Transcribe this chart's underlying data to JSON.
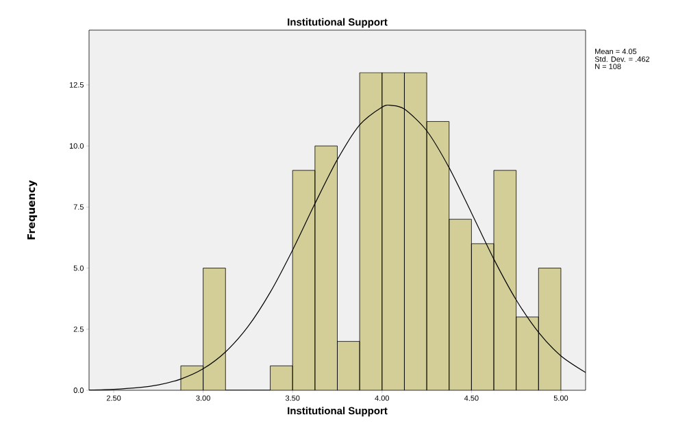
{
  "chart_data": {
    "type": "histogram",
    "title": "Institutional Support",
    "xlabel": "Institutional Support",
    "ylabel": "Frequency",
    "bins": [
      2.875,
      3.0,
      3.125,
      3.25,
      3.375,
      3.5,
      3.625,
      3.75,
      3.875,
      4.0,
      4.125,
      4.25,
      4.375,
      4.5,
      4.625,
      4.75,
      4.875,
      5.0
    ],
    "values": [
      1,
      5,
      0,
      0,
      1,
      9,
      10,
      2,
      13,
      13,
      13,
      11,
      7,
      6,
      9,
      3,
      5
    ],
    "color": "#d3ce97",
    "series": [
      {
        "type": "line",
        "color": "#000000",
        "x": [
          2.362,
          2.5,
          2.625,
          2.75,
          2.875,
          3.0,
          3.125,
          3.25,
          3.375,
          3.5,
          3.625,
          3.75,
          3.875,
          4.0,
          4.05,
          4.125,
          4.25,
          4.375,
          4.5,
          4.625,
          4.75,
          4.875,
          5.0,
          5.138
        ],
        "values": [
          0.01,
          0.04,
          0.1,
          0.22,
          0.46,
          0.88,
          1.57,
          2.6,
          4.01,
          5.74,
          7.64,
          9.44,
          10.86,
          11.59,
          11.66,
          11.51,
          10.62,
          9.11,
          7.26,
          5.37,
          3.7,
          2.37,
          1.41,
          0.73
        ]
      }
    ],
    "xlim": [
      2.362,
      5.138
    ],
    "ylim": [
      0,
      14.74
    ],
    "xticks": [
      {
        "value": 2.5,
        "label": "2.50"
      },
      {
        "value": 3.0,
        "label": "3.00"
      },
      {
        "value": 3.5,
        "label": "3.50"
      },
      {
        "value": 4.0,
        "label": "4.00"
      },
      {
        "value": 4.5,
        "label": "4.50"
      },
      {
        "value": 5.0,
        "label": "5.00"
      }
    ],
    "yticks": [
      {
        "value": 0,
        "label": "0.0"
      },
      {
        "value": 2.5,
        "label": "2.5"
      },
      {
        "value": 5,
        "label": "5.0"
      },
      {
        "value": 7.5,
        "label": "7.5"
      },
      {
        "value": 10,
        "label": "10.0"
      },
      {
        "value": 12.5,
        "label": "12.5"
      }
    ],
    "annotations": [
      "Mean = 4.05",
      "Std. Dev. = .462",
      "N = 108"
    ]
  }
}
